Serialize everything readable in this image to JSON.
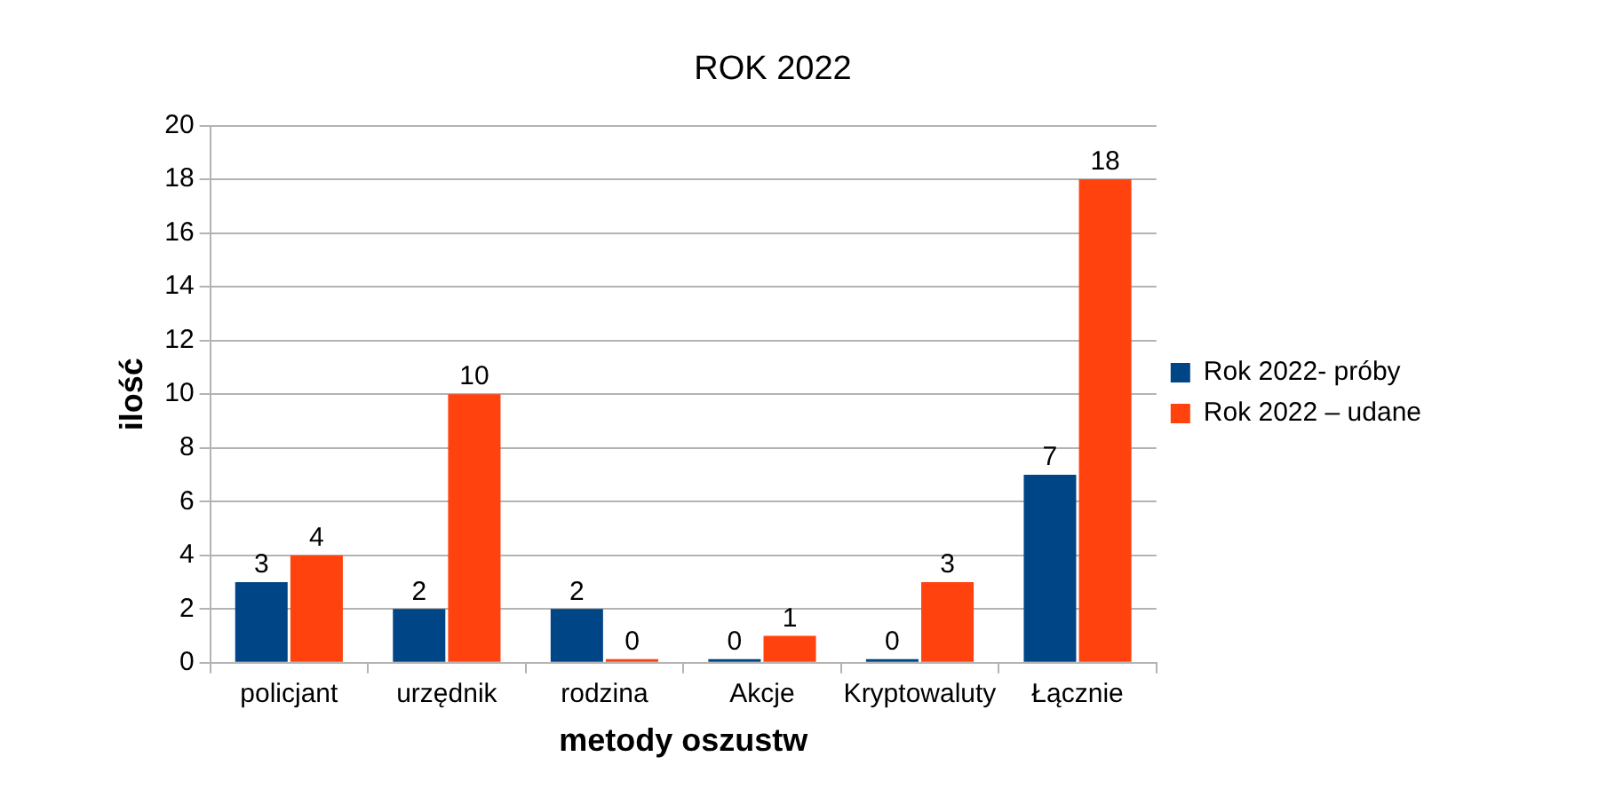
{
  "chart_data": {
    "type": "bar",
    "title": "ROK 2022",
    "xlabel": "metody oszustw",
    "ylabel": "ilość",
    "categories": [
      "policjant",
      "urzędnik",
      "rodzina",
      "Akcje",
      "Kryptowaluty",
      "Łącznie"
    ],
    "series": [
      {
        "name": "Rok 2022- próby",
        "color": "#004586",
        "values": [
          3,
          2,
          2,
          0,
          0,
          7
        ]
      },
      {
        "name": "Rok 2022 – udane",
        "color": "#ff420e",
        "values": [
          4,
          10,
          0,
          1,
          3,
          18
        ]
      }
    ],
    "ylim": [
      0,
      20
    ],
    "yticks": [
      0,
      2,
      4,
      6,
      8,
      10,
      12,
      14,
      16,
      18,
      20
    ],
    "grid": "y",
    "legend": "right",
    "data_labels": true
  }
}
